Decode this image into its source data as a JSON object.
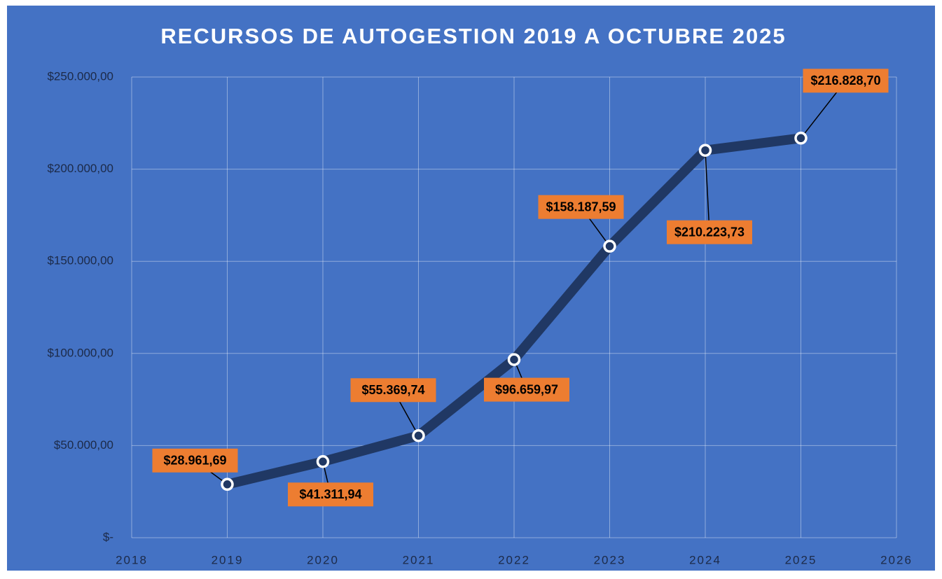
{
  "chart_data": {
    "type": "line",
    "title": "RECURSOS DE AUTOGESTION 2019 A OCTUBRE 2025",
    "x": [
      2019,
      2020,
      2021,
      2022,
      2023,
      2024,
      2025
    ],
    "values": [
      28961.69,
      41311.94,
      55369.74,
      96659.97,
      158187.59,
      210223.73,
      216828.7
    ],
    "value_labels": [
      "$28.961,69",
      "$41.311,94",
      "$55.369,74",
      "$96.659,97",
      "$158.187,59",
      "$210.223,73",
      "$216.828,70"
    ],
    "color": "#203864",
    "label_color": "#ed7d31",
    "xlim": [
      2018,
      2026
    ],
    "xticks": [
      2018,
      2019,
      2020,
      2021,
      2022,
      2023,
      2024,
      2025,
      2026
    ],
    "ylim": [
      0,
      250000
    ],
    "yticks": [
      {
        "value": 0,
        "label": "$-"
      },
      {
        "value": 50000,
        "label": "$50.000,00"
      },
      {
        "value": 100000,
        "label": "$100.000,00"
      },
      {
        "value": 150000,
        "label": "$150.000,00"
      },
      {
        "value": 200000,
        "label": "$200.000,00"
      },
      {
        "value": 250000,
        "label": "$250.000,00"
      }
    ],
    "grid": true
  }
}
